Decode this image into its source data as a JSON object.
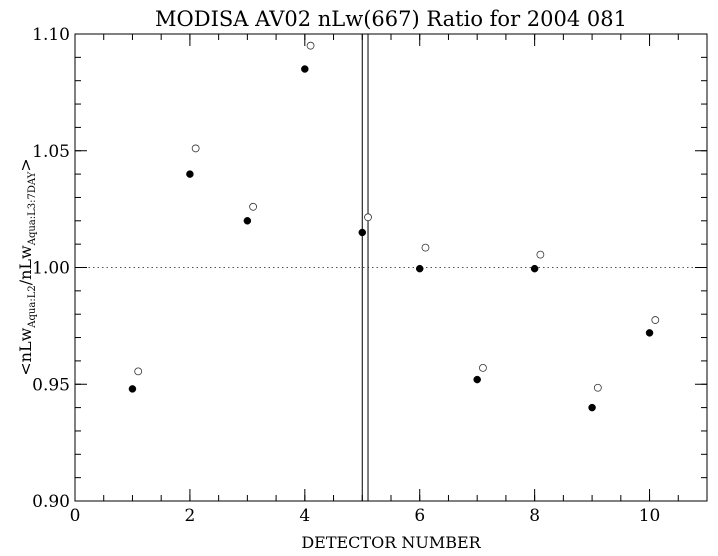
{
  "chart_data": {
    "type": "scatter",
    "title": "MODISA AV02 nLw(667) Ratio for 2004 081",
    "xlabel": "DETECTOR NUMBER",
    "ylabel": {
      "prefix": "<nLw",
      "sub1": "Aqua:L2",
      "mid": "/nLw",
      "sub2": "Aqua:L3:7DAY",
      "suffix": ">"
    },
    "xlim": [
      0,
      11
    ],
    "ylim": [
      0.9,
      1.1
    ],
    "x_ticks": [
      0,
      2,
      4,
      6,
      8,
      10
    ],
    "x_tick_labels": [
      "0",
      "2",
      "4",
      "6",
      "8",
      "10"
    ],
    "x_minor_step": 0.5,
    "y_ticks": [
      0.9,
      0.95,
      1.0,
      1.05,
      1.1
    ],
    "y_tick_labels": [
      "0.90",
      "0.95",
      "1.00",
      "1.05",
      "1.10"
    ],
    "y_minor_step": 0.01,
    "reference_line": {
      "y": 1.0,
      "style": "dotted"
    },
    "vertical_lines": [
      5.0,
      5.1
    ],
    "series": [
      {
        "marker": "filled-circle",
        "x": [
          1,
          2,
          3,
          4,
          5,
          6,
          7,
          8,
          9,
          10
        ],
        "y": [
          0.948,
          1.04,
          1.02,
          1.085,
          1.015,
          0.9995,
          0.952,
          0.9995,
          0.94,
          0.972
        ]
      },
      {
        "marker": "open-circle",
        "x": [
          1.1,
          2.1,
          3.1,
          4.1,
          5.1,
          6.1,
          7.1,
          8.1,
          9.1,
          10.1
        ],
        "y": [
          0.9555,
          1.051,
          1.026,
          1.095,
          1.0215,
          1.0085,
          0.957,
          1.0055,
          0.9485,
          0.9775
        ]
      }
    ]
  }
}
